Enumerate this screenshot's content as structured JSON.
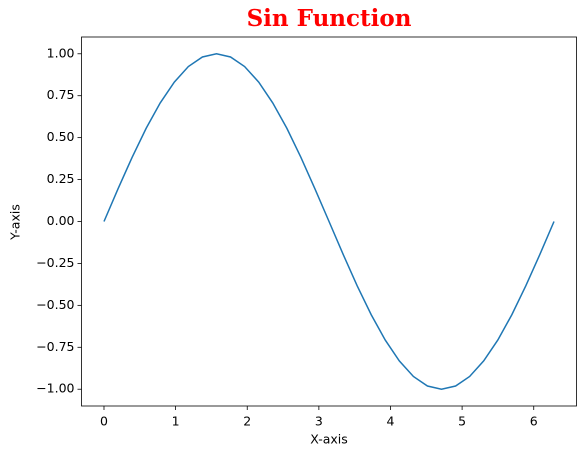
{
  "chart_data": {
    "type": "line",
    "title": "Sin Function",
    "title_color": "#ff0000",
    "xlabel": "X-axis",
    "ylabel": "Y-axis",
    "x": [
      0,
      0.196,
      0.393,
      0.589,
      0.785,
      0.982,
      1.178,
      1.374,
      1.571,
      1.767,
      1.963,
      2.16,
      2.356,
      2.553,
      2.749,
      2.945,
      3.142,
      3.338,
      3.534,
      3.731,
      3.927,
      4.123,
      4.32,
      4.516,
      4.712,
      4.909,
      5.105,
      5.301,
      5.498,
      5.694,
      5.89,
      6.087,
      6.283
    ],
    "series": [
      {
        "color": "#1f77b4",
        "values": [
          0,
          0.195,
          0.383,
          0.556,
          0.707,
          0.831,
          0.924,
          0.981,
          1,
          0.981,
          0.924,
          0.831,
          0.707,
          0.556,
          0.383,
          0.195,
          0,
          -0.195,
          -0.383,
          -0.556,
          -0.707,
          -0.831,
          -0.924,
          -0.981,
          -1,
          -0.981,
          -0.924,
          -0.831,
          -0.707,
          -0.556,
          -0.383,
          -0.195,
          0
        ]
      }
    ],
    "xlim": [
      -0.314,
      6.597
    ],
    "ylim": [
      -1.1,
      1.1
    ],
    "xticks": [
      0,
      1,
      2,
      3,
      4,
      5,
      6
    ],
    "yticks": [
      {
        "value": -1,
        "label": "−1.00"
      },
      {
        "value": -0.75,
        "label": "−0.75"
      },
      {
        "value": -0.5,
        "label": "−0.50"
      },
      {
        "value": -0.25,
        "label": "−0.25"
      },
      {
        "value": 0,
        "label": "0.00"
      },
      {
        "value": 0.25,
        "label": "0.25"
      },
      {
        "value": 0.5,
        "label": "0.50"
      },
      {
        "value": 0.75,
        "label": "0.75"
      },
      {
        "value": 1,
        "label": "1.00"
      }
    ]
  }
}
